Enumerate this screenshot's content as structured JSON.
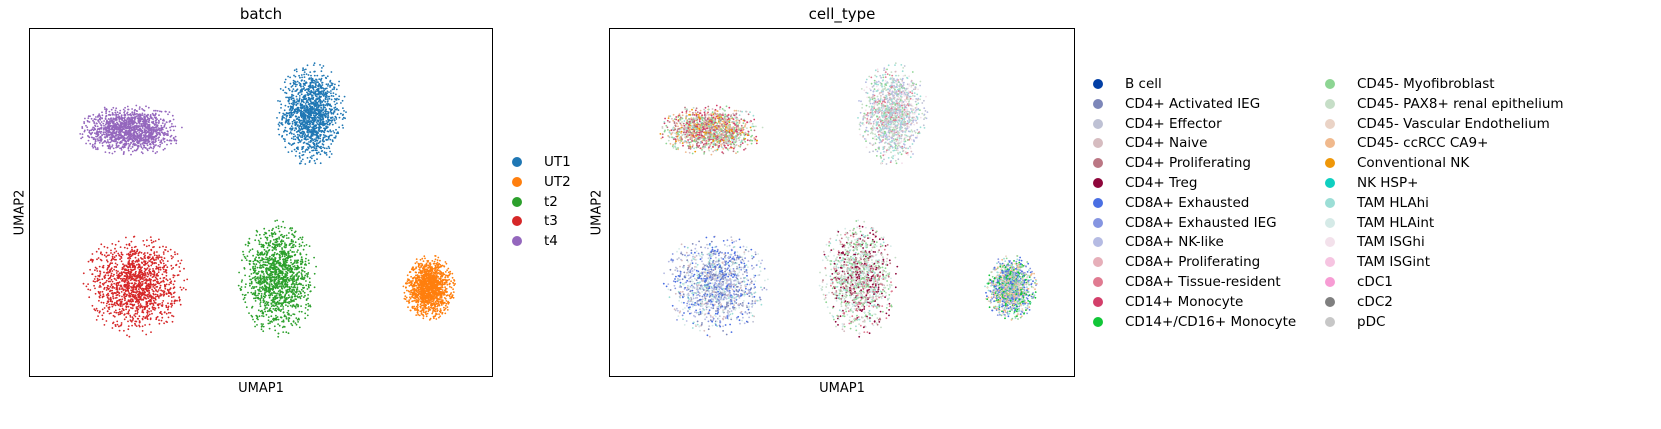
{
  "chart_data": [
    {
      "type": "scatter",
      "title": "batch",
      "xlabel": "UMAP1",
      "ylabel": "UMAP2",
      "grid": false,
      "legend_position": "right",
      "categories": [
        {
          "name": "UT1",
          "color": "#1f77b4",
          "center": [
            6.2,
            7.8
          ],
          "spread": [
            0.8,
            1.6
          ]
        },
        {
          "name": "UT2",
          "color": "#ff7f0e",
          "center": [
            9.0,
            2.3
          ],
          "spread": [
            0.6,
            1.0
          ]
        },
        {
          "name": "t2",
          "color": "#2ca02c",
          "center": [
            5.4,
            2.6
          ],
          "spread": [
            0.9,
            1.8
          ]
        },
        {
          "name": "t3",
          "color": "#d62728",
          "center": [
            2.0,
            2.4
          ],
          "spread": [
            1.2,
            1.6
          ]
        },
        {
          "name": "t4",
          "color": "#9467bd",
          "center": [
            1.9,
            7.3
          ],
          "spread": [
            1.2,
            0.8
          ]
        }
      ]
    },
    {
      "type": "scatter",
      "title": "cell_type",
      "xlabel": "UMAP1",
      "ylabel": "UMAP2",
      "grid": false,
      "legend_position": "right",
      "legend_columns": 2,
      "categories": [
        {
          "name": "B cell",
          "color": "#023fa5"
        },
        {
          "name": "CD4+ Activated IEG",
          "color": "#7d87b9"
        },
        {
          "name": "CD4+ Effector",
          "color": "#bec1d4"
        },
        {
          "name": "CD4+ Naive",
          "color": "#d6bcc0"
        },
        {
          "name": "CD4+ Proliferating",
          "color": "#bb7784"
        },
        {
          "name": "CD4+ Treg",
          "color": "#8e063b"
        },
        {
          "name": "CD8A+ Exhausted",
          "color": "#4a6fe3"
        },
        {
          "name": "CD8A+ Exhausted IEG",
          "color": "#8595e1"
        },
        {
          "name": "CD8A+ NK-like",
          "color": "#b5bbe3"
        },
        {
          "name": "CD8A+ Proliferating",
          "color": "#e6afb9"
        },
        {
          "name": "CD8A+ Tissue-resident",
          "color": "#e07b91"
        },
        {
          "name": "CD14+ Monocyte",
          "color": "#d33f6a"
        },
        {
          "name": "CD14+/CD16+ Monocyte",
          "color": "#11c638"
        },
        {
          "name": "CD45- Myofibroblast",
          "color": "#8dd593"
        },
        {
          "name": "CD45- PAX8+ renal epithelium",
          "color": "#c6dec7"
        },
        {
          "name": "CD45- Vascular Endothelium",
          "color": "#ead3c6"
        },
        {
          "name": "CD45- ccRCC CA9+",
          "color": "#f0b98d"
        },
        {
          "name": "Conventional NK",
          "color": "#ef9708"
        },
        {
          "name": "NK HSP+",
          "color": "#0fcfc0"
        },
        {
          "name": "TAM HLAhi",
          "color": "#9cded6"
        },
        {
          "name": "TAM HLAint",
          "color": "#d5eae7"
        },
        {
          "name": "TAM ISGhi",
          "color": "#f3e1eb"
        },
        {
          "name": "TAM ISGint",
          "color": "#f6c4e1"
        },
        {
          "name": "cDC1",
          "color": "#f79cd4"
        },
        {
          "name": "cDC2",
          "color": "#7f7f7f"
        },
        {
          "name": "pDC",
          "color": "#c7c7c7"
        }
      ],
      "clusters": [
        {
          "batch": "UT1",
          "mix": [
            "CD45- PAX8+ renal epithelium",
            "CD45- Myofibroblast",
            "TAM HLAhi",
            "CD4+ Naive",
            "CD8A+ NK-like",
            "CD4+ Effector",
            "TAM ISGhi",
            "CD8A+ Tissue-resident"
          ]
        },
        {
          "batch": "t4",
          "mix": [
            "CD45- Myofibroblast",
            "CD4+ Naive",
            "CD14+ Monocyte",
            "Conventional NK",
            "CD45- ccRCC CA9+",
            "TAM HLAhi",
            "CD4+ Proliferating",
            "CD45- PAX8+ renal epithelium"
          ]
        },
        {
          "batch": "t3",
          "mix": [
            "CD8A+ Exhausted",
            "CD8A+ Exhausted IEG",
            "CD4+ Activated IEG",
            "CD4+ Naive",
            "CD8A+ NK-like",
            "TAM HLAhi",
            "TAM HLAint",
            "CD4+ Effector"
          ]
        },
        {
          "batch": "t2",
          "mix": [
            "CD45- PAX8+ renal epithelium",
            "TAM HLAhi",
            "TAM HLAint",
            "CD4+ Proliferating",
            "CD4+ Treg",
            "CD4+ Naive",
            "CD45- Myofibroblast",
            "CD8A+ Tissue-resident"
          ]
        },
        {
          "batch": "UT2",
          "mix": [
            "CD45- ccRCC CA9+",
            "CD45- Vascular Endothelium",
            "CD45- Myofibroblast",
            "CD8A+ Exhausted",
            "CD8A+ Exhausted IEG",
            "TAM HLAhi",
            "CD14+/CD16+ Monocyte"
          ]
        }
      ]
    }
  ]
}
